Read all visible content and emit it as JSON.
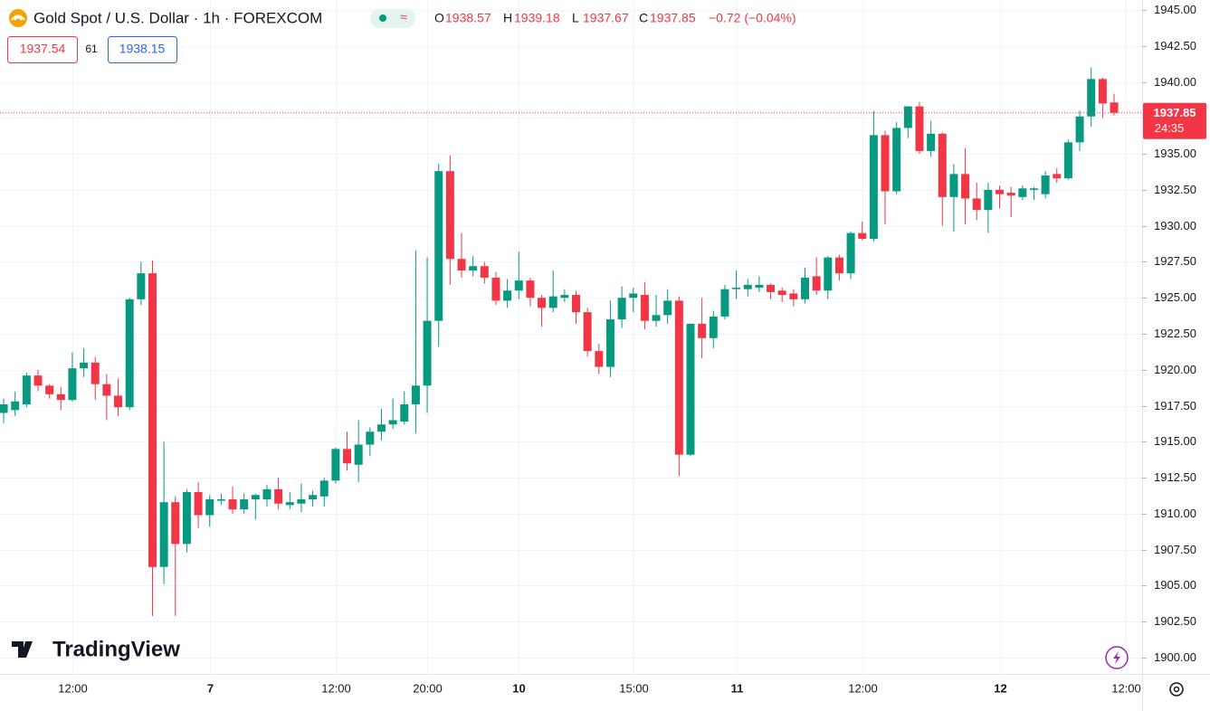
{
  "header": {
    "title": "Gold Spot / U.S. Dollar · 1h · FOREXCOM",
    "ohlc_labels": [
      "O",
      "H",
      "L",
      "C"
    ],
    "change": "−0.72 (−0.04%)",
    "bid": "1937.54",
    "spread": "61",
    "ask": "1938.15",
    "countdown": "24:35",
    "logo": "TradingView"
  },
  "chart_data": {
    "type": "candlestick",
    "up_color": "#089981",
    "down_color": "#f23645",
    "grid": true,
    "xlim": [
      -0.32,
      99.45
    ],
    "xticks": [
      {
        "value": 6,
        "label": "12:00"
      },
      {
        "value": 18,
        "label": "7"
      },
      {
        "value": 29,
        "label": "12:00"
      },
      {
        "value": 37,
        "label": "20:00"
      },
      {
        "value": 45,
        "label": "10"
      },
      {
        "value": 55,
        "label": "15:00"
      },
      {
        "value": 64,
        "label": "11"
      },
      {
        "value": 75,
        "label": "12:00"
      },
      {
        "value": 87,
        "label": "12"
      },
      {
        "value": 98,
        "label": "12:00"
      }
    ],
    "ylim": [
      1898.87,
      1945.69
    ],
    "yticks": [
      {
        "value": 1900,
        "label": "1900.00"
      },
      {
        "value": 1902.5,
        "label": "1902.50"
      },
      {
        "value": 1905,
        "label": "1905.00"
      },
      {
        "value": 1907.5,
        "label": "1907.50"
      },
      {
        "value": 1910,
        "label": "1910.00"
      },
      {
        "value": 1912.5,
        "label": "1912.50"
      },
      {
        "value": 1915,
        "label": "1915.00"
      },
      {
        "value": 1917.5,
        "label": "1917.50"
      },
      {
        "value": 1920,
        "label": "1920.00"
      },
      {
        "value": 1922.5,
        "label": "1922.50"
      },
      {
        "value": 1925,
        "label": "1925.00"
      },
      {
        "value": 1927.5,
        "label": "1927.50"
      },
      {
        "value": 1930,
        "label": "1930.00"
      },
      {
        "value": 1932.5,
        "label": "1932.50"
      },
      {
        "value": 1935,
        "label": "1935.00"
      },
      {
        "value": 1937.5,
        "label": "1937.50"
      },
      {
        "value": 1940,
        "label": "1940.00"
      },
      {
        "value": 1942.5,
        "label": "1942.50"
      },
      {
        "value": 1945,
        "label": "1945.00"
      }
    ],
    "open": [
      1917.0,
      1917.2,
      1917.6,
      1919.6,
      1918.9,
      1918.3,
      1917.9,
      1920.1,
      1920.5,
      1919.0,
      1918.2,
      1917.4,
      1924.9,
      1926.7,
      1906.3,
      1910.8,
      1907.9,
      1911.5,
      1909.9,
      1910.9,
      1911.0,
      1910.3,
      1911.0,
      1911.0,
      1911.7,
      1910.6,
      1910.7,
      1911.0,
      1911.2,
      1912.3,
      1914.5,
      1913.4,
      1914.8,
      1915.7,
      1916.2,
      1916.4,
      1917.6,
      1918.9,
      1923.4,
      1933.8,
      1927.7,
      1926.9,
      1927.2,
      1926.4,
      1924.8,
      1925.5,
      1926.2,
      1925.0,
      1924.3,
      1925.0,
      1925.2,
      1924.0,
      1921.3,
      1920.2,
      1923.5,
      1925.0,
      1925.2,
      1923.4,
      1923.8,
      1924.8,
      1914.1,
      1923.2,
      1922.2,
      1923.7,
      1925.6,
      1925.6,
      1925.7,
      1925.9,
      1925.5,
      1925.3,
      1924.9,
      1926.5,
      1925.5,
      1927.8,
      1926.7,
      1929.5,
      1929.1,
      1936.3,
      1932.4,
      1936.8,
      1938.3,
      1935.2,
      1936.4,
      1932.0,
      1933.6,
      1931.9,
      1931.1,
      1932.5,
      1932.3,
      1932.0,
      1932.5,
      1932.2,
      1933.6,
      1933.3,
      1935.8,
      1937.6,
      1940.2,
      1938.57
    ],
    "high": [
      1918.0,
      1918.5,
      1919.8,
      1920.0,
      1919.0,
      1918.8,
      1921.2,
      1921.5,
      1920.9,
      1919.7,
      1919.4,
      1925.0,
      1927.5,
      1927.6,
      1915.0,
      1911.2,
      1911.7,
      1912.2,
      1911.3,
      1911.4,
      1911.9,
      1911.4,
      1911.4,
      1912.0,
      1912.5,
      1911.5,
      1912.1,
      1911.6,
      1912.5,
      1914.6,
      1915.7,
      1916.5,
      1916.0,
      1917.3,
      1918.0,
      1918.5,
      1928.3,
      1927.8,
      1934.3,
      1934.9,
      1929.5,
      1927.9,
      1927.5,
      1926.8,
      1926.3,
      1928.2,
      1926.4,
      1925.2,
      1926.9,
      1925.6,
      1925.5,
      1924.3,
      1921.8,
      1924.8,
      1925.8,
      1925.7,
      1926.1,
      1925.2,
      1925.6,
      1925.1,
      1923.2,
      1925.0,
      1924.1,
      1925.9,
      1926.9,
      1926.3,
      1926.5,
      1926.0,
      1925.7,
      1925.6,
      1927.1,
      1927.8,
      1927.9,
      1928.0,
      1929.6,
      1930.3,
      1938.0,
      1936.6,
      1937.2,
      1938.3,
      1938.6,
      1937.3,
      1936.5,
      1934.3,
      1935.4,
      1933.0,
      1933.0,
      1932.8,
      1932.7,
      1932.8,
      1932.7,
      1933.8,
      1934.0,
      1936.0,
      1938.0,
      1941.0,
      1940.3,
      1939.18
    ],
    "low": [
      1916.3,
      1916.8,
      1917.4,
      1918.5,
      1918.0,
      1917.2,
      1917.8,
      1919.5,
      1917.9,
      1916.5,
      1916.8,
      1917.2,
      1924.5,
      1902.9,
      1905.1,
      1902.9,
      1907.3,
      1909.0,
      1909.1,
      1910.6,
      1910.0,
      1910.0,
      1909.6,
      1910.5,
      1910.3,
      1910.3,
      1910.1,
      1910.5,
      1910.5,
      1912.1,
      1913.0,
      1912.2,
      1914.0,
      1915.1,
      1915.9,
      1916.2,
      1915.6,
      1917.0,
      1921.6,
      1925.9,
      1926.4,
      1926.5,
      1926.0,
      1924.5,
      1924.3,
      1924.9,
      1924.4,
      1923.0,
      1924.0,
      1924.7,
      1923.2,
      1920.9,
      1919.7,
      1919.5,
      1922.9,
      1924.0,
      1922.8,
      1923.0,
      1923.2,
      1912.6,
      1914.0,
      1920.8,
      1921.5,
      1923.5,
      1924.9,
      1925.1,
      1925.4,
      1924.9,
      1924.7,
      1924.4,
      1924.6,
      1925.2,
      1924.9,
      1926.2,
      1926.3,
      1929.0,
      1928.9,
      1930.1,
      1932.2,
      1936.1,
      1935.0,
      1934.8,
      1930.0,
      1929.6,
      1930.1,
      1930.4,
      1929.5,
      1931.2,
      1930.6,
      1931.8,
      1931.8,
      1931.9,
      1933.0,
      1933.2,
      1935.2,
      1936.9,
      1937.5,
      1937.67
    ],
    "close": [
      1917.6,
      1917.8,
      1919.6,
      1918.9,
      1918.3,
      1917.9,
      1920.1,
      1920.5,
      1919.0,
      1918.2,
      1917.4,
      1924.9,
      1926.7,
      1906.3,
      1910.8,
      1907.9,
      1911.5,
      1909.9,
      1911.0,
      1911.0,
      1910.3,
      1911.0,
      1911.3,
      1911.7,
      1910.7,
      1910.8,
      1911.0,
      1911.3,
      1912.3,
      1914.5,
      1913.5,
      1914.8,
      1915.7,
      1916.2,
      1916.5,
      1917.6,
      1918.9,
      1923.4,
      1933.8,
      1927.7,
      1926.9,
      1927.2,
      1926.4,
      1924.8,
      1925.5,
      1926.2,
      1925.0,
      1924.3,
      1925.1,
      1925.2,
      1924.0,
      1921.3,
      1920.2,
      1923.5,
      1925.0,
      1925.3,
      1923.4,
      1923.8,
      1924.8,
      1914.1,
      1923.2,
      1922.2,
      1923.7,
      1925.6,
      1925.7,
      1925.9,
      1925.9,
      1925.4,
      1925.2,
      1924.9,
      1926.4,
      1925.5,
      1927.8,
      1926.7,
      1929.5,
      1929.1,
      1936.3,
      1932.4,
      1936.8,
      1938.3,
      1935.2,
      1936.4,
      1932.0,
      1933.6,
      1931.9,
      1931.1,
      1932.5,
      1932.2,
      1932.1,
      1932.6,
      1932.6,
      1933.5,
      1933.3,
      1935.8,
      1937.6,
      1940.2,
      1938.5,
      1937.85
    ]
  }
}
